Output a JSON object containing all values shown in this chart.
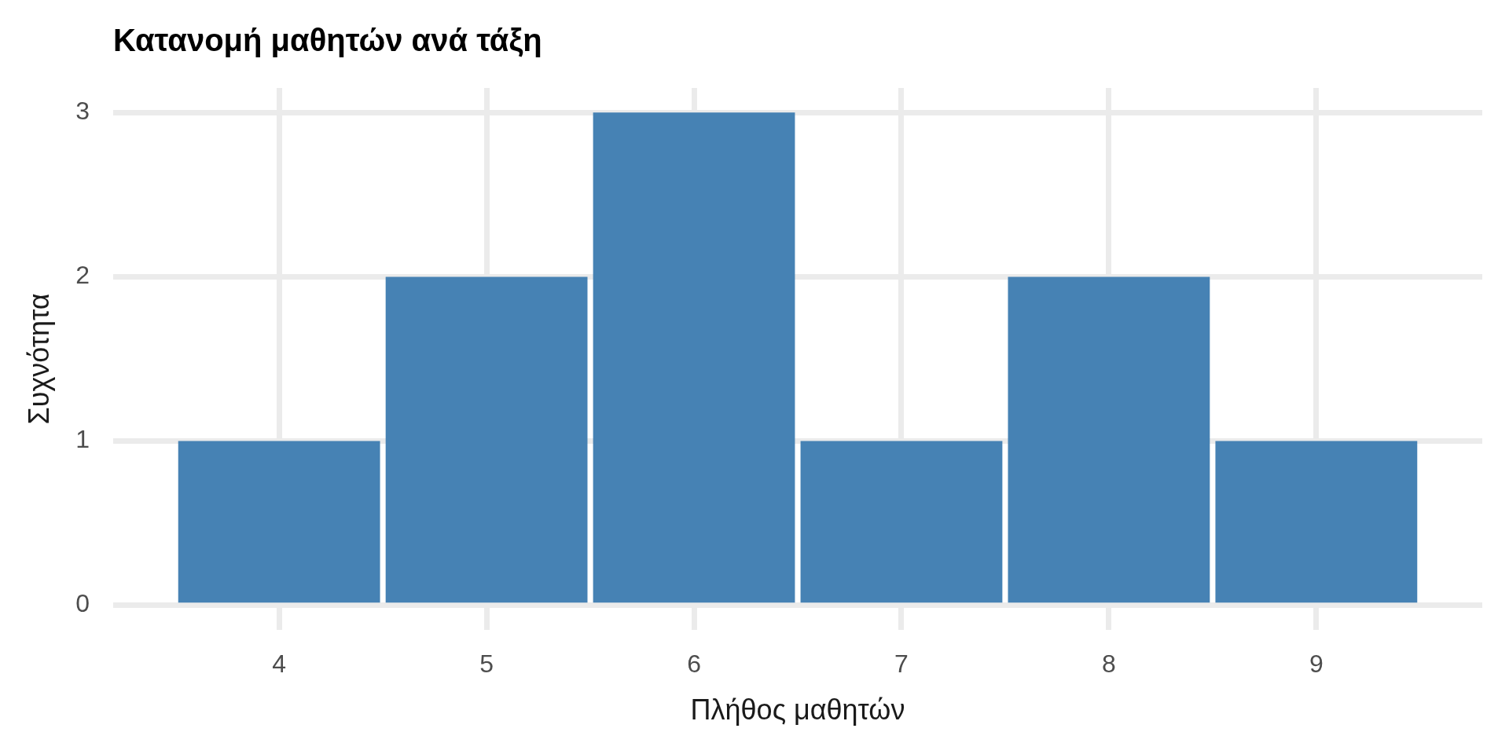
{
  "chart_data": {
    "type": "histogram",
    "title": "Κατανομή μαθητών ανά τάξη",
    "xlabel": "Πλήθος μαθητών",
    "ylabel": "Συχνότητα",
    "bins": [
      3.5,
      4.5,
      5.5,
      6.5,
      7.5,
      8.5,
      9.5
    ],
    "values": [
      1,
      2,
      3,
      1,
      2,
      1
    ],
    "color": "#4682b4",
    "xlim": [
      3.2,
      9.8
    ],
    "xticks": [
      4,
      5,
      6,
      7,
      8,
      9
    ],
    "ylim": [
      -0.15,
      3.15
    ],
    "yticks": [
      0,
      1,
      2,
      3
    ],
    "grid": true
  }
}
